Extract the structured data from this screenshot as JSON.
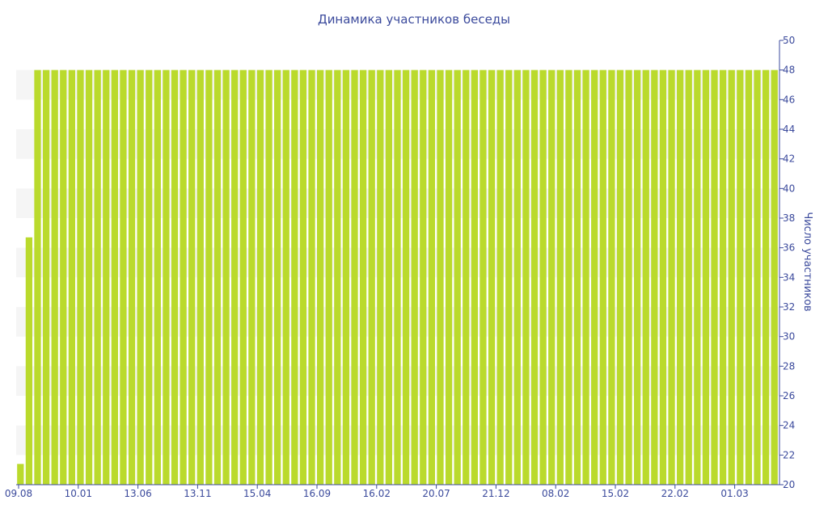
{
  "chart_data": {
    "type": "bar",
    "title": "Динамика участников беседы",
    "ylabel": "Число участников",
    "xlabel": "",
    "y_axis_side": "right",
    "ylim": [
      20,
      50
    ],
    "ytick_step": 2,
    "grid": "alternating horizontal bands",
    "legend": "none",
    "x_tick_labels": [
      "09.08",
      "10.01",
      "13.06",
      "13.11",
      "15.04",
      "16.09",
      "16.02",
      "20.07",
      "21.12",
      "08.02",
      "15.02",
      "22.02",
      "01.03"
    ],
    "values": [
      21.4,
      36.7,
      48,
      48,
      48,
      48,
      48,
      48,
      48,
      48,
      48,
      48,
      48,
      48,
      48,
      48,
      48,
      48,
      48,
      48,
      48,
      48,
      48,
      48,
      48,
      48,
      48,
      48,
      48,
      48,
      48,
      48,
      48,
      48,
      48,
      48,
      48,
      48,
      48,
      48,
      48,
      48,
      48,
      48,
      48,
      48,
      48,
      48,
      48,
      48,
      48,
      48,
      48,
      48,
      48,
      48,
      48,
      48,
      48,
      48,
      48,
      48,
      48,
      48,
      48,
      48,
      48,
      48,
      48,
      48,
      48,
      48,
      48,
      48,
      48,
      48,
      48,
      48,
      48,
      48,
      48,
      48,
      48,
      48,
      48,
      48,
      48,
      48,
      48
    ],
    "colors": {
      "bar": "#bada2c",
      "band": "#f5f5f5",
      "text": "#3b4a9c",
      "axis": "#3b4a9c"
    }
  }
}
